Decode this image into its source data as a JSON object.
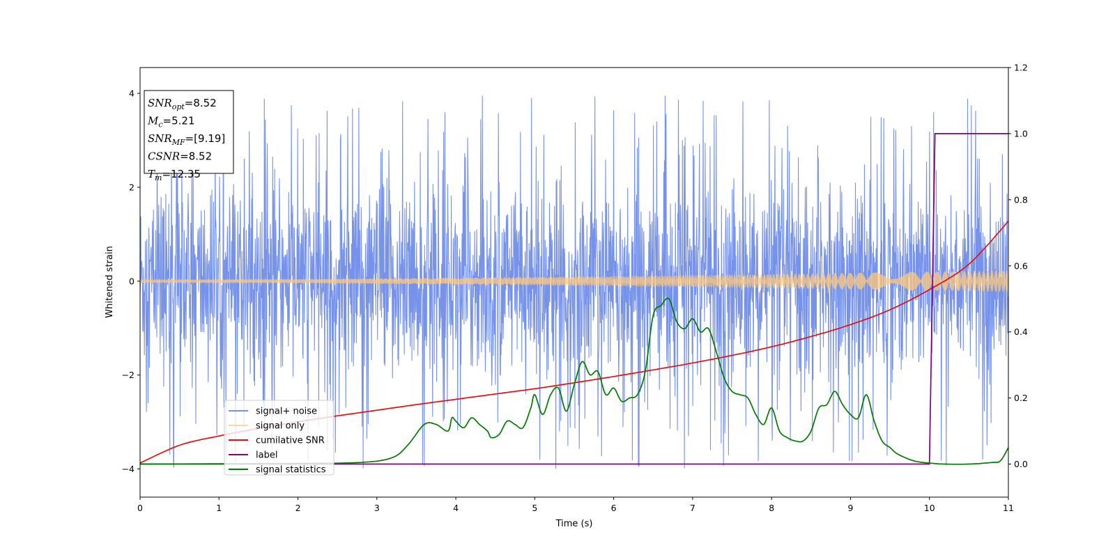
{
  "chart_data": {
    "type": "line",
    "xlabel": "Time (s)",
    "ylabel": "Whitened strain",
    "xlim": [
      0,
      11
    ],
    "ylim_left": [
      -4.6,
      4.55
    ],
    "ylim_right": [
      -0.1,
      1.2
    ],
    "x_ticks": [
      "0",
      "1",
      "2",
      "3",
      "4",
      "5",
      "6",
      "7",
      "8",
      "9",
      "10",
      "11"
    ],
    "y_ticks_left": [
      "−4",
      "−2",
      "0",
      "2",
      "4"
    ],
    "y_ticks_right": [
      "0.0",
      "0.2",
      "0.4",
      "0.6",
      "0.8",
      "1.0",
      "1.2"
    ],
    "legend_position": "lower-left",
    "info_box": {
      "lines": [
        {
          "base": "SNR",
          "sub": "opt",
          "value": "=8.52"
        },
        {
          "base": "M",
          "sub": "c",
          "value": "=5.21"
        },
        {
          "base": "SNR",
          "sub": "MF",
          "value": "=[9.19]"
        },
        {
          "base": "CSNR",
          "sub": "",
          "value": "=8.52"
        },
        {
          "base": "T",
          "sub": "m",
          "value": "=12.35"
        }
      ]
    },
    "series": [
      {
        "name": "signal+ noise",
        "axis": "left",
        "color": "#6f8de8",
        "style": "noise band",
        "approx_amplitude": 1.6,
        "observed_max": 4.15,
        "observed_min": -4.15
      },
      {
        "name": "signal only",
        "axis": "left",
        "color": "#ffc87a",
        "style": "chirp",
        "start_amplitude": 0.03,
        "end_amplitude": 0.23
      },
      {
        "name": "cumilative SNR",
        "axis": "right",
        "color": "#e01010",
        "x": [
          0,
          0.5,
          1,
          1.5,
          2,
          2.5,
          3,
          3.5,
          4,
          4.5,
          5,
          5.5,
          6,
          6.5,
          7,
          7.5,
          8,
          8.5,
          9,
          9.5,
          10,
          10.5,
          11
        ],
        "y": [
          0.003,
          0.057,
          0.085,
          0.108,
          0.128,
          0.146,
          0.163,
          0.18,
          0.196,
          0.212,
          0.228,
          0.246,
          0.265,
          0.285,
          0.306,
          0.329,
          0.355,
          0.386,
          0.422,
          0.467,
          0.528,
          0.605,
          0.735
        ]
      },
      {
        "name": "label",
        "axis": "right",
        "color": "#800080",
        "x": [
          0,
          10.0,
          10.07,
          11
        ],
        "y": [
          0.0,
          0.0,
          1.0,
          1.0
        ]
      },
      {
        "name": "signal statistics",
        "axis": "right",
        "color": "#007a00",
        "x": [
          0,
          1,
          2,
          2.8,
          3.2,
          3.4,
          3.6,
          3.75,
          3.9,
          3.95,
          4.0,
          4.1,
          4.2,
          4.3,
          4.4,
          4.45,
          4.55,
          4.65,
          4.75,
          4.85,
          4.95,
          5.0,
          5.1,
          5.2,
          5.3,
          5.4,
          5.5,
          5.6,
          5.7,
          5.8,
          5.9,
          6.0,
          6.1,
          6.2,
          6.3,
          6.4,
          6.5,
          6.6,
          6.7,
          6.8,
          6.9,
          7.0,
          7.1,
          7.2,
          7.3,
          7.4,
          7.5,
          7.6,
          7.7,
          7.8,
          7.9,
          8.0,
          8.1,
          8.2,
          8.3,
          8.4,
          8.5,
          8.6,
          8.7,
          8.8,
          8.9,
          9.0,
          9.1,
          9.2,
          9.3,
          9.4,
          9.5,
          9.6,
          9.8,
          10.0,
          10.2,
          10.5,
          10.8,
          10.9,
          11.0
        ],
        "y": [
          0.0,
          0.001,
          0.002,
          0.005,
          0.02,
          0.06,
          0.12,
          0.12,
          0.1,
          0.14,
          0.13,
          0.11,
          0.14,
          0.12,
          0.1,
          0.08,
          0.09,
          0.13,
          0.12,
          0.11,
          0.17,
          0.21,
          0.15,
          0.21,
          0.23,
          0.16,
          0.24,
          0.31,
          0.27,
          0.28,
          0.21,
          0.23,
          0.19,
          0.2,
          0.21,
          0.28,
          0.45,
          0.48,
          0.5,
          0.43,
          0.41,
          0.44,
          0.4,
          0.41,
          0.34,
          0.26,
          0.22,
          0.21,
          0.2,
          0.15,
          0.12,
          0.17,
          0.1,
          0.08,
          0.07,
          0.07,
          0.1,
          0.17,
          0.18,
          0.22,
          0.18,
          0.15,
          0.14,
          0.21,
          0.13,
          0.07,
          0.05,
          0.03,
          0.01,
          0.003,
          0.0,
          0.0,
          0.005,
          0.01,
          0.05
        ]
      }
    ]
  }
}
